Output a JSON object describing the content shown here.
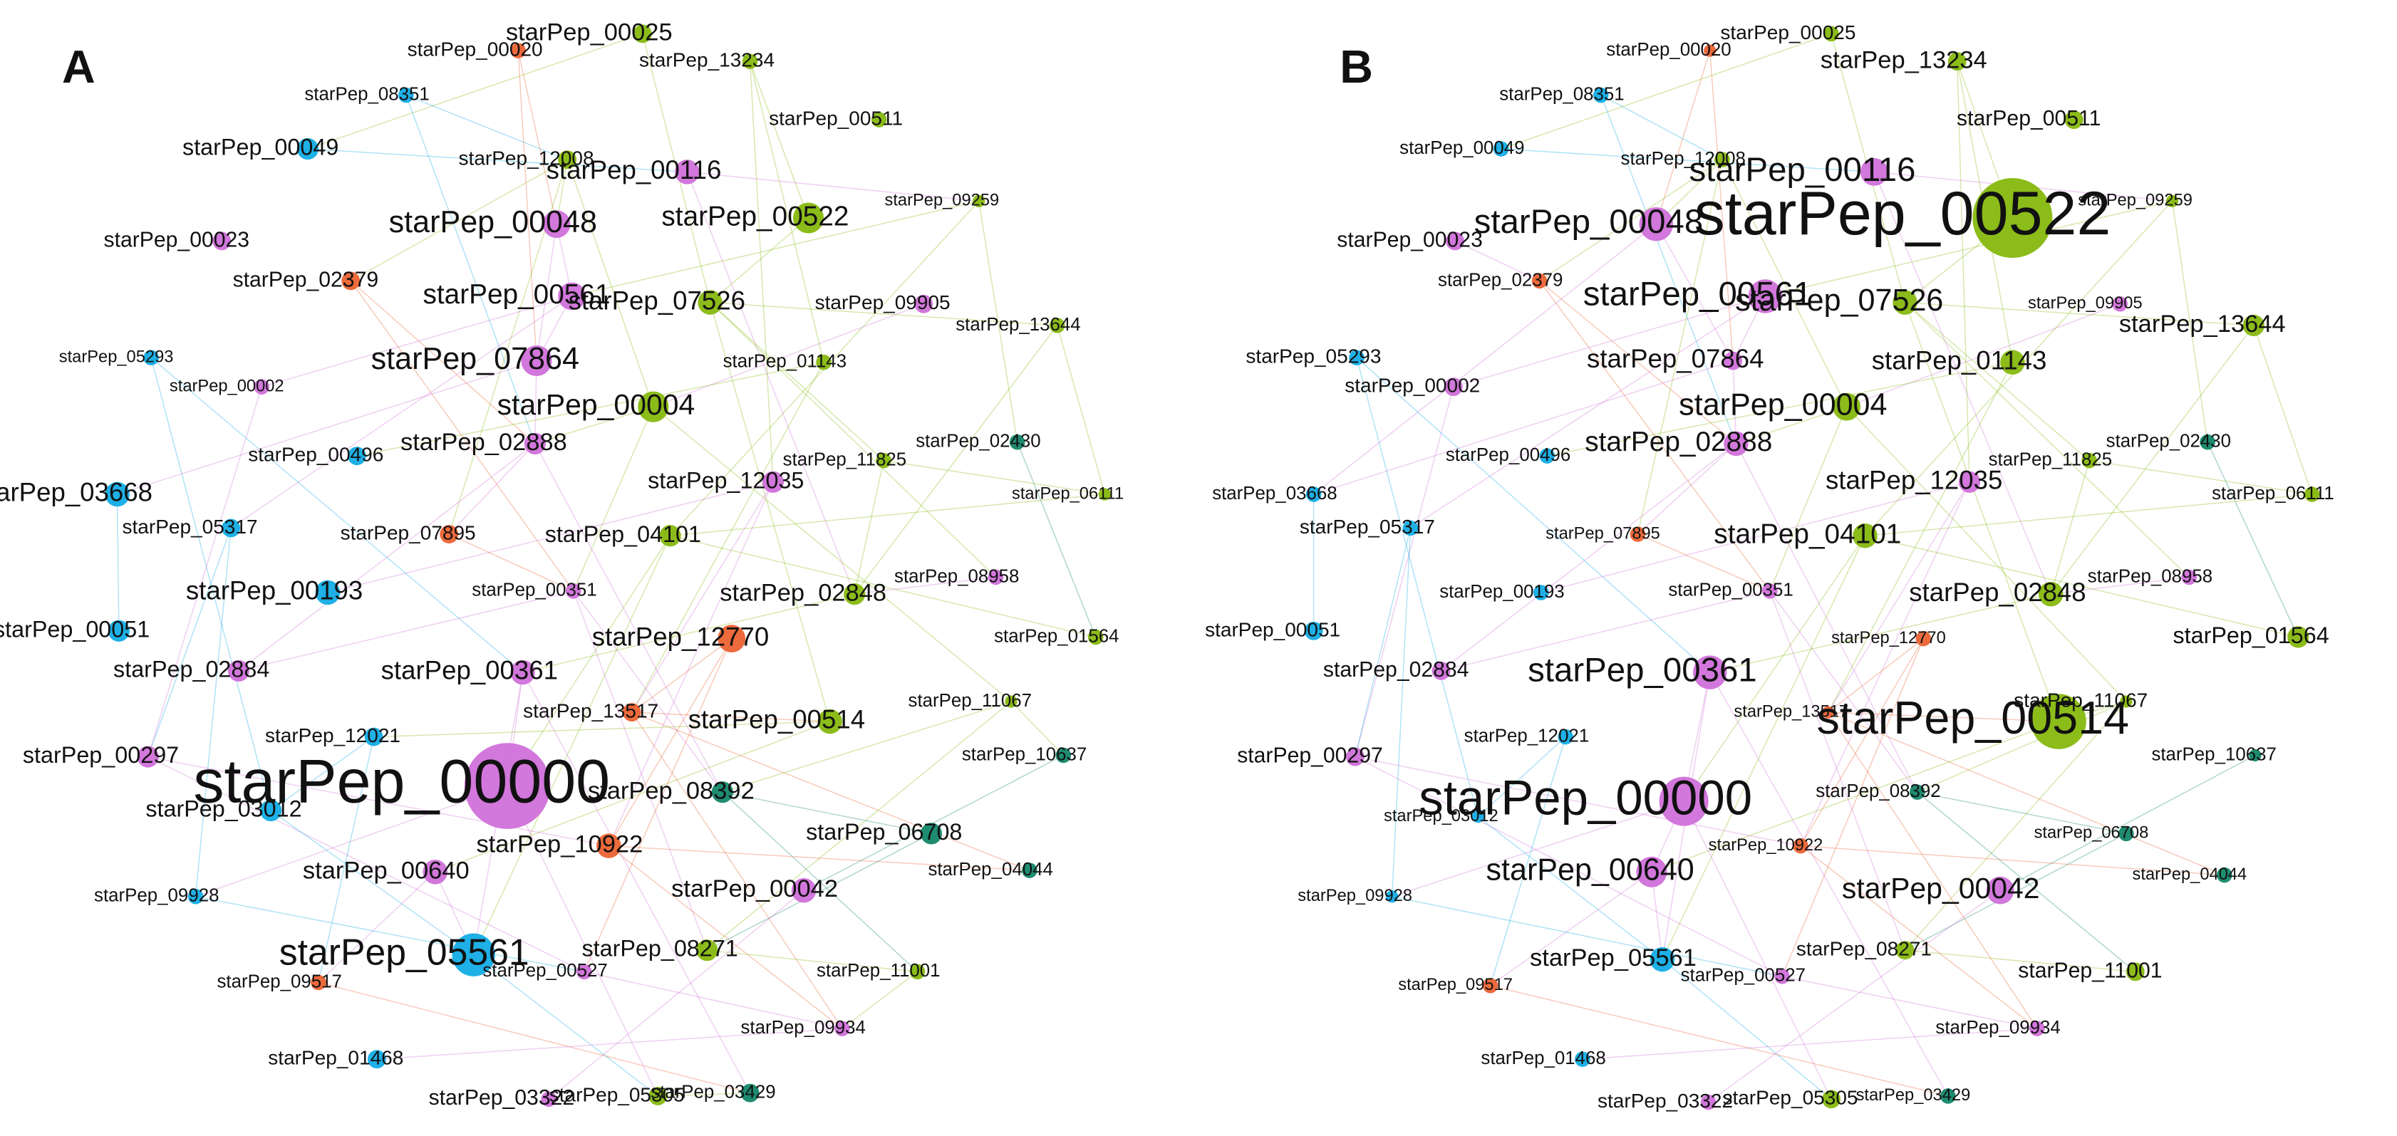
{
  "panels": [
    {
      "label": "A"
    },
    {
      "label": "B"
    }
  ],
  "nodes": [
    {
      "label": "starPep_00020",
      "color": "#ec6a3c"
    },
    {
      "label": "starPep_00025",
      "color": "#8cbc1a"
    },
    {
      "label": "starPep_13234",
      "color": "#8cbc1a"
    },
    {
      "label": "starPep_08351",
      "color": "#1eb0e6"
    },
    {
      "label": "starPep_00511",
      "color": "#8cbc1a"
    },
    {
      "label": "starPep_00049",
      "color": "#1eb0e6"
    },
    {
      "label": "starPep_12008",
      "color": "#8cbc1a"
    },
    {
      "label": "starPep_00116",
      "color": "#d277db"
    },
    {
      "label": "starPep_09259",
      "color": "#8cbc1a"
    },
    {
      "label": "starPep_00048",
      "color": "#d277db"
    },
    {
      "label": "starPep_00522",
      "color": "#8cbc1a"
    },
    {
      "label": "starPep_00023",
      "color": "#d277db"
    },
    {
      "label": "starPep_02379",
      "color": "#ec6a3c"
    },
    {
      "label": "starPep_00561",
      "color": "#d277db"
    },
    {
      "label": "starPep_07526",
      "color": "#8cbc1a"
    },
    {
      "label": "starPep_09905",
      "color": "#d277db"
    },
    {
      "label": "starPep_13644",
      "color": "#8cbc1a"
    },
    {
      "label": "starPep_05293",
      "color": "#1eb0e6"
    },
    {
      "label": "starPep_07864",
      "color": "#d277db"
    },
    {
      "label": "starPep_01143",
      "color": "#8cbc1a"
    },
    {
      "label": "starPep_00002",
      "color": "#d277db"
    },
    {
      "label": "starPep_00004",
      "color": "#8cbc1a"
    },
    {
      "label": "starPep_02430",
      "color": "#1f8c70"
    },
    {
      "label": "starPep_00496",
      "color": "#1eb0e6"
    },
    {
      "label": "starPep_02888",
      "color": "#d277db"
    },
    {
      "label": "starPep_11825",
      "color": "#8cbc1a"
    },
    {
      "label": "starPep_06111",
      "color": "#8cbc1a"
    },
    {
      "label": "starPep_03668",
      "color": "#1eb0e6"
    },
    {
      "label": "starPep_12035",
      "color": "#d277db"
    },
    {
      "label": "starPep_05317",
      "color": "#1eb0e6"
    },
    {
      "label": "starPep_07895",
      "color": "#ec6a3c"
    },
    {
      "label": "starPep_04101",
      "color": "#8cbc1a"
    },
    {
      "label": "starPep_00193",
      "color": "#1eb0e6"
    },
    {
      "label": "starPep_00351",
      "color": "#d277db"
    },
    {
      "label": "starPep_08958",
      "color": "#d277db"
    },
    {
      "label": "starPep_02848",
      "color": "#8cbc1a"
    },
    {
      "label": "starPep_00051",
      "color": "#1eb0e6"
    },
    {
      "label": "starPep_12770",
      "color": "#ec6a3c"
    },
    {
      "label": "starPep_01564",
      "color": "#8cbc1a"
    },
    {
      "label": "starPep_02884",
      "color": "#d277db"
    },
    {
      "label": "starPep_00361",
      "color": "#d277db"
    },
    {
      "label": "starPep_13517",
      "color": "#ec6a3c"
    },
    {
      "label": "starPep_11067",
      "color": "#8cbc1a"
    },
    {
      "label": "starPep_00514",
      "color": "#8cbc1a"
    },
    {
      "label": "starPep_12021",
      "color": "#1eb0e6"
    },
    {
      "label": "starPep_10637",
      "color": "#1f8c70"
    },
    {
      "label": "starPep_00297",
      "color": "#d277db"
    },
    {
      "label": "starPep_00000",
      "color": "#d277db"
    },
    {
      "label": "starPep_08392",
      "color": "#1f8c70"
    },
    {
      "label": "starPep_03012",
      "color": "#1eb0e6"
    },
    {
      "label": "starPep_10922",
      "color": "#ec6a3c"
    },
    {
      "label": "starPep_06708",
      "color": "#1f8c70"
    },
    {
      "label": "starPep_04044",
      "color": "#1f8c70"
    },
    {
      "label": "starPep_00640",
      "color": "#d277db"
    },
    {
      "label": "starPep_00042",
      "color": "#d277db"
    },
    {
      "label": "starPep_09928",
      "color": "#1eb0e6"
    },
    {
      "label": "starPep_05561",
      "color": "#1eb0e6"
    },
    {
      "label": "starPep_08271",
      "color": "#8cbc1a"
    },
    {
      "label": "starPep_09517",
      "color": "#ec6a3c"
    },
    {
      "label": "starPep_00527",
      "color": "#d277db"
    },
    {
      "label": "starPep_11001",
      "color": "#8cbc1a"
    },
    {
      "label": "starPep_09934",
      "color": "#d277db"
    },
    {
      "label": "starPep_01468",
      "color": "#1eb0e6"
    },
    {
      "label": "starPep_03322",
      "color": "#d277db"
    },
    {
      "label": "starPep_05305",
      "color": "#8cbc1a"
    },
    {
      "label": "starPep_03429",
      "color": "#1f8c70"
    }
  ]
}
